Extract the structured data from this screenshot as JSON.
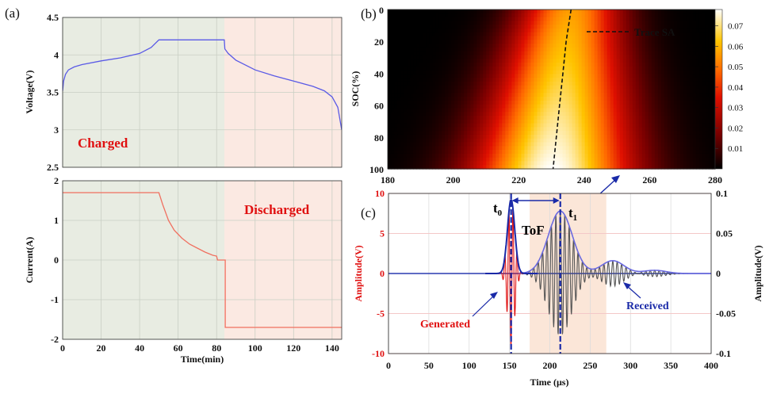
{
  "colors": {
    "charged_bg": "#e8ece2",
    "discharged_bg": "#fbe9e2",
    "voltage_line": "#5a5ae6",
    "current_line": "#f07060",
    "label_red": "#e01010",
    "navy": "#1a2aa8",
    "tof_bg": "#fbe6d8",
    "received_wave": "#555555"
  },
  "chart_data": [
    {
      "id": "a-top",
      "type": "line",
      "panel_label": "(a)",
      "ylabel": "Voltage(V)",
      "xlim": [
        0,
        145
      ],
      "ylim": [
        2.5,
        4.5
      ],
      "xticks": [
        0,
        20,
        40,
        60,
        80,
        100,
        120,
        140
      ],
      "yticks": [
        2.5,
        3,
        3.5,
        4,
        4.5
      ],
      "ytick_labels": [
        "2.5",
        "3",
        "3.5",
        "4",
        "4.5"
      ],
      "region_split_x": 84,
      "annotation": "Charged",
      "series": [
        {
          "name": "Voltage",
          "x": [
            0,
            0.5,
            1.5,
            3,
            6,
            10,
            20,
            30,
            40,
            46,
            50,
            60,
            70,
            80,
            84,
            84.3,
            86,
            90,
            100,
            110,
            120,
            130,
            136,
            140,
            143,
            145
          ],
          "y": [
            3.52,
            3.65,
            3.74,
            3.8,
            3.84,
            3.87,
            3.92,
            3.96,
            4.02,
            4.1,
            4.2,
            4.2,
            4.2,
            4.2,
            4.2,
            4.08,
            4.02,
            3.93,
            3.8,
            3.72,
            3.65,
            3.58,
            3.52,
            3.44,
            3.3,
            3.0
          ]
        }
      ]
    },
    {
      "id": "a-bottom",
      "type": "line",
      "xlabel": "Time(min)",
      "ylabel": "Current(A)",
      "xlim": [
        0,
        145
      ],
      "ylim": [
        -2,
        2
      ],
      "xticks": [
        0,
        20,
        40,
        60,
        80,
        100,
        120,
        140
      ],
      "xtick_labels": [
        "0",
        "20",
        "40",
        "60",
        "80",
        "100",
        "120",
        "140"
      ],
      "yticks": [
        -2,
        -1,
        0,
        1,
        2
      ],
      "ytick_labels": [
        "-2",
        "-1",
        "0",
        "1",
        "2"
      ],
      "region_split_x": 84,
      "annotation": "Discharged",
      "series": [
        {
          "name": "Current",
          "x": [
            0,
            50,
            52,
            55,
            58,
            62,
            66,
            70,
            74,
            78,
            80,
            80.5,
            84,
            84.5,
            84.5,
            145
          ],
          "y": [
            1.7,
            1.7,
            1.4,
            1.0,
            0.75,
            0.55,
            0.4,
            0.3,
            0.2,
            0.12,
            0.1,
            0.0,
            0.0,
            0.0,
            -1.7,
            -1.7
          ]
        }
      ]
    },
    {
      "id": "b",
      "type": "heatmap",
      "panel_label": "(b)",
      "ylabel": "SOC(%)",
      "xlim": [
        180,
        280
      ],
      "ylim": [
        0,
        100
      ],
      "xticks": [
        180,
        200,
        220,
        240,
        260,
        280
      ],
      "xtick_labels": [
        "180",
        "200",
        "220",
        "240",
        "260",
        "280"
      ],
      "yticks": [
        0,
        20,
        40,
        60,
        80,
        100
      ],
      "ytick_labels": [
        "0",
        "20",
        "40",
        "60",
        "80",
        "100"
      ],
      "colorbar_ticks": [
        "0.07",
        "0.06",
        "0.05",
        "0.04",
        "0.03",
        "0.02",
        "0.01"
      ],
      "colorbar_values": [
        0.07,
        0.06,
        0.05,
        0.04,
        0.03,
        0.02,
        0.01
      ],
      "colorbar_max": 0.078,
      "trace_label": "Trace SA",
      "trace": {
        "soc": [
          0,
          20,
          40,
          60,
          80,
          100
        ],
        "time": [
          236,
          234.5,
          233.5,
          232.5,
          231.5,
          230.5
        ]
      }
    },
    {
      "id": "c",
      "type": "line",
      "panel_label": "(c)",
      "xlabel": "Time (μs)",
      "ylabel_left": "Amplitude(V)",
      "ylabel_right": "Amplitude(V)",
      "xlim": [
        0,
        400
      ],
      "ylim_left": [
        -10,
        10
      ],
      "ylim_right": [
        -0.1,
        0.1
      ],
      "xticks": [
        0,
        50,
        100,
        150,
        200,
        250,
        300,
        350,
        400
      ],
      "xtick_labels": [
        "0",
        "50",
        "100",
        "150",
        "200",
        "250",
        "300",
        "350",
        "400"
      ],
      "yticks_left": [
        -10,
        -5,
        0,
        5,
        10
      ],
      "ytick_labels_left": [
        "-10",
        "-5",
        "0",
        "5",
        "10"
      ],
      "yticks_right": [
        -0.1,
        -0.05,
        0,
        0.05,
        0.1
      ],
      "ytick_labels_right": [
        "-0.1",
        "-0.05",
        "0",
        "0.05",
        "0.1"
      ],
      "tof_window": [
        175,
        270
      ],
      "t0": 152,
      "t1": 213,
      "t0_label": "t",
      "t0_sub": "0",
      "t1_label": "t",
      "t1_sub": "1",
      "tof_label": "ToF",
      "generated_label": "Generated",
      "received_label": "Received",
      "generated": {
        "center": 152,
        "amp_V": 9.2,
        "sigma": 4.5,
        "period": 5
      },
      "received_packets": [
        {
          "center": 213,
          "amp": 0.078,
          "sigma": 15,
          "period": 5.5
        },
        {
          "center": 278,
          "amp": 0.016,
          "sigma": 14,
          "period": 5.5
        },
        {
          "center": 330,
          "amp": 0.004,
          "sigma": 14,
          "period": 5.5
        }
      ]
    }
  ]
}
